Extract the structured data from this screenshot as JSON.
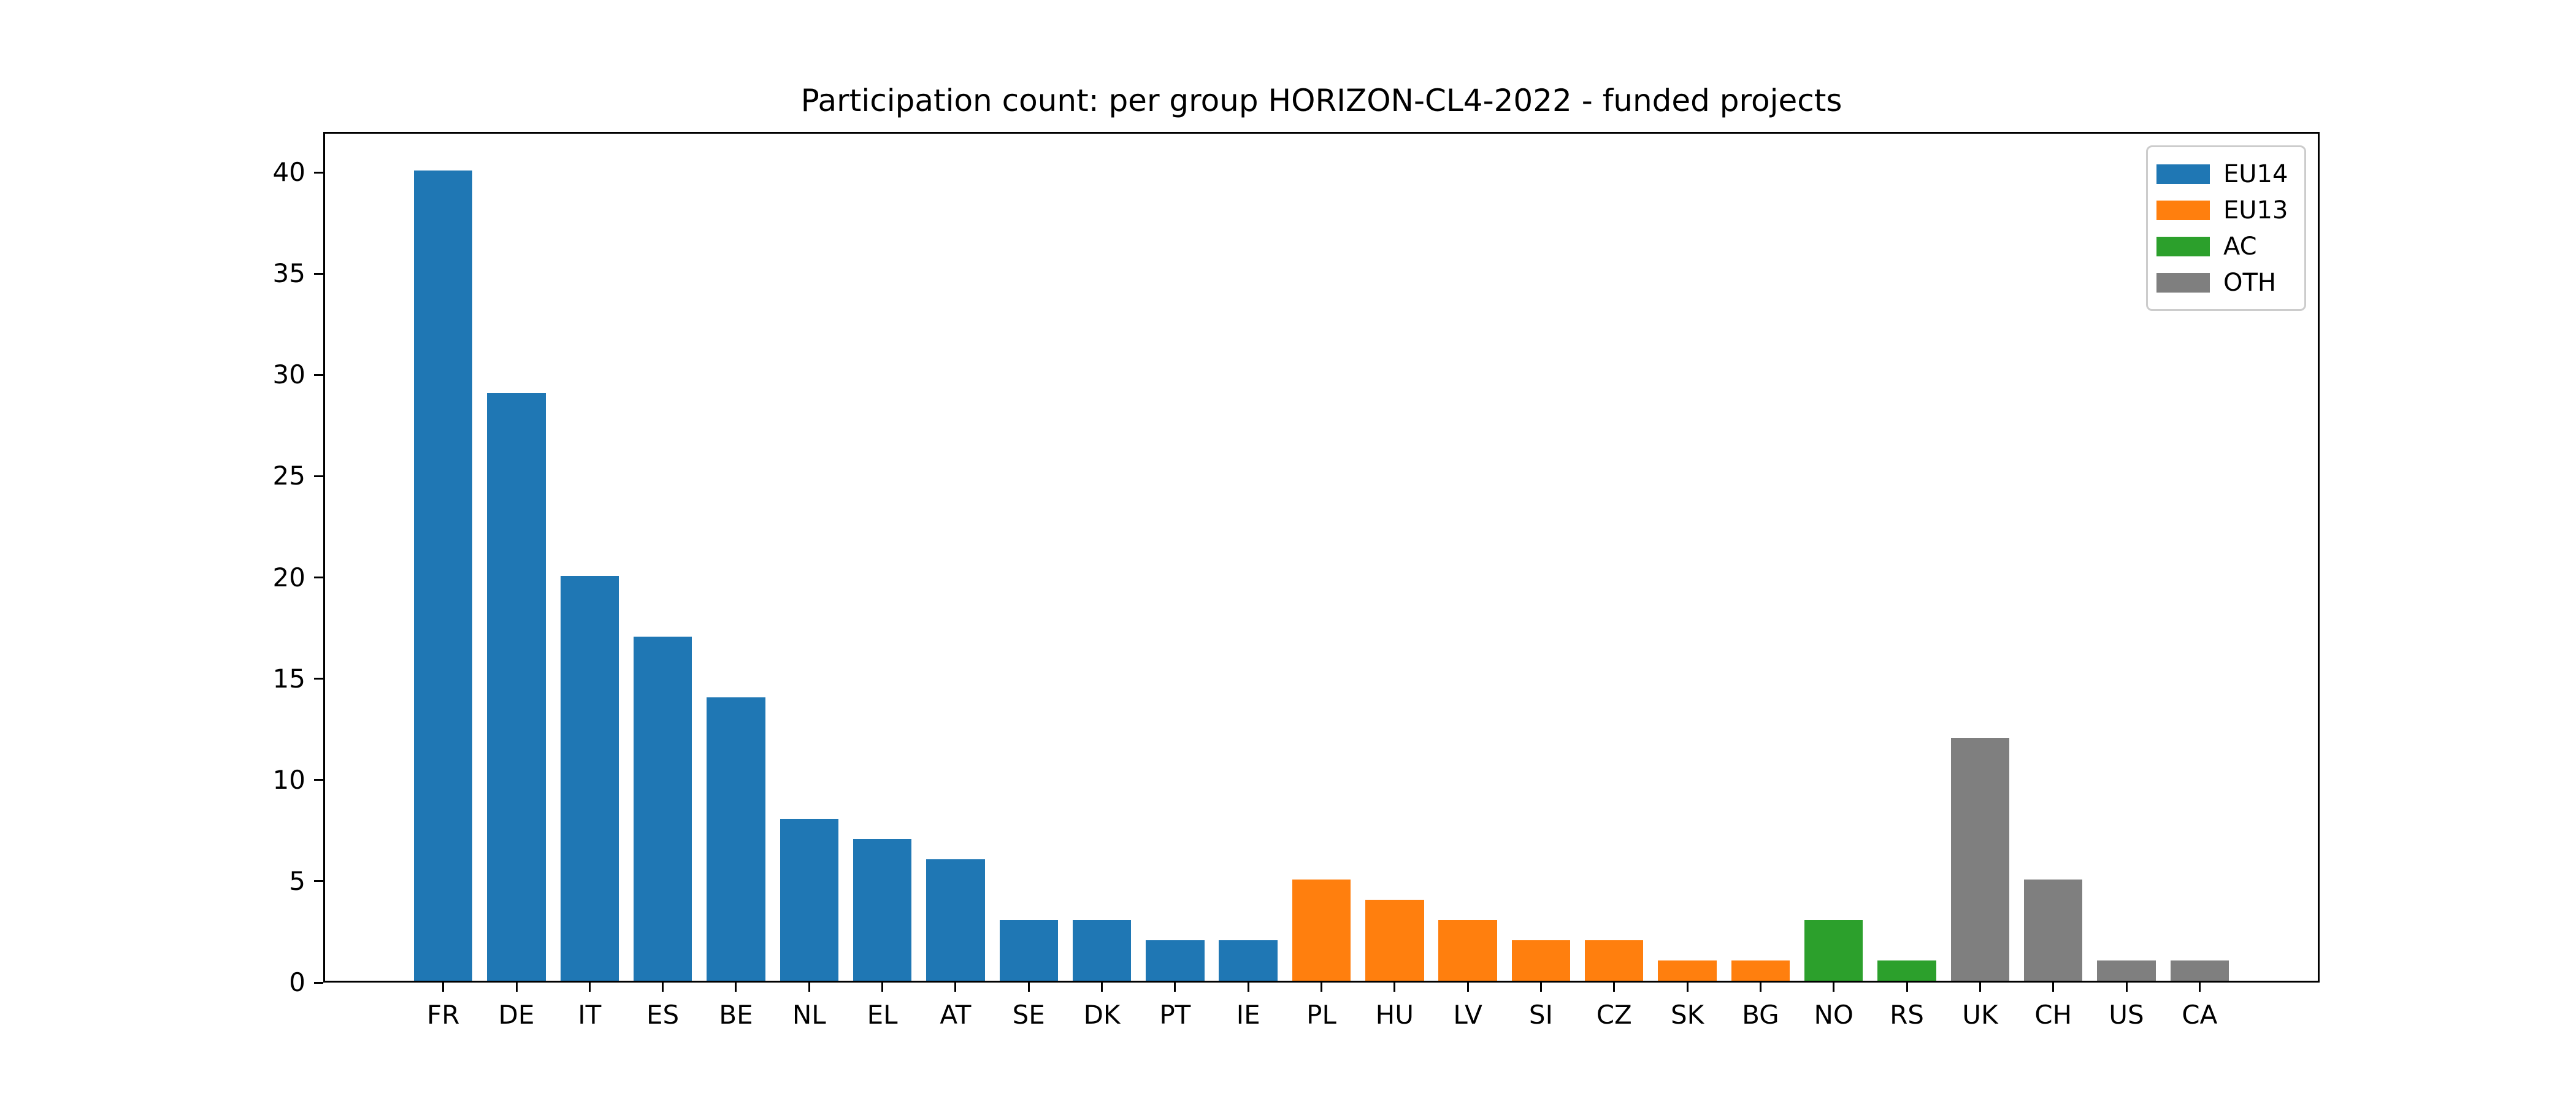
{
  "figure": {
    "background": "#ffffff"
  },
  "chart_data": {
    "type": "bar",
    "title": "Participation count: per group HORIZON-CL4-2022 - funded projects",
    "xlabel": "",
    "ylabel": "",
    "categories": [
      "FR",
      "DE",
      "IT",
      "ES",
      "BE",
      "NL",
      "EL",
      "AT",
      "SE",
      "DK",
      "PT",
      "IE",
      "PL",
      "HU",
      "LV",
      "SI",
      "CZ",
      "SK",
      "BG",
      "NO",
      "RS",
      "UK",
      "CH",
      "US",
      "CA"
    ],
    "values": [
      40,
      29,
      20,
      17,
      14,
      8,
      7,
      6,
      3,
      3,
      2,
      2,
      5,
      4,
      3,
      2,
      2,
      1,
      1,
      3,
      1,
      12,
      5,
      1,
      1
    ],
    "bar_groups": [
      "EU14",
      "EU14",
      "EU14",
      "EU14",
      "EU14",
      "EU14",
      "EU14",
      "EU14",
      "EU14",
      "EU14",
      "EU14",
      "EU14",
      "EU13",
      "EU13",
      "EU13",
      "EU13",
      "EU13",
      "EU13",
      "EU13",
      "AC",
      "AC",
      "OTH",
      "OTH",
      "OTH",
      "OTH"
    ],
    "colors": {
      "EU14": "#1f77b4",
      "EU13": "#ff7f0e",
      "AC": "#2ca02c",
      "OTH": "#7f7f7f"
    },
    "legend": {
      "position": "upper-right",
      "entries": [
        {
          "label": "EU14",
          "color": "#1f77b4"
        },
        {
          "label": "EU13",
          "color": "#ff7f0e"
        },
        {
          "label": "AC",
          "color": "#2ca02c"
        },
        {
          "label": "OTH",
          "color": "#7f7f7f"
        }
      ]
    },
    "yticks": [
      0,
      5,
      10,
      15,
      20,
      25,
      30,
      35,
      40
    ],
    "ylim": [
      0,
      42
    ],
    "grid": false
  }
}
